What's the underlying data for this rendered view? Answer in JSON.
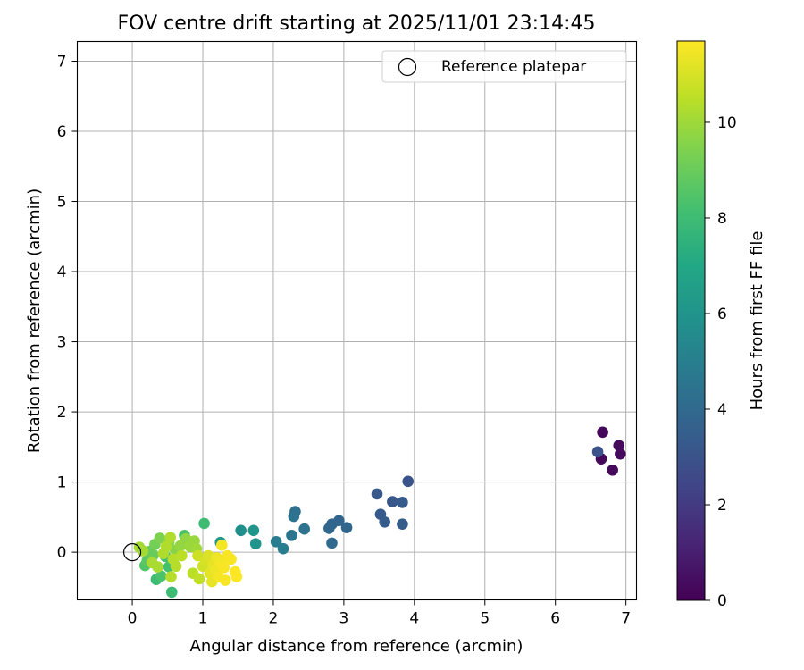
{
  "chart_data": {
    "type": "scatter",
    "title": "FOV centre drift starting at 2025/11/01 23:14:45",
    "xlabel": "Angular distance from reference (arcmin)",
    "ylabel": "Rotation from reference (arcmin)",
    "xlim": [
      -0.78,
      7.15
    ],
    "ylim": [
      -0.68,
      7.28
    ],
    "xticks": [
      0,
      1,
      2,
      3,
      4,
      5,
      6,
      7
    ],
    "yticks": [
      0,
      1,
      2,
      3,
      4,
      5,
      6,
      7
    ],
    "grid": true,
    "legend": {
      "position": "top-right",
      "entries": [
        "Reference platepar"
      ]
    },
    "reference_point": {
      "x": 0,
      "y": 0,
      "label": "Reference platepar"
    },
    "colorbar": {
      "label": "Hours from first FF file",
      "range": [
        0,
        11.7
      ],
      "ticks": [
        0,
        2,
        4,
        6,
        8,
        10
      ],
      "colormap": "viridis"
    },
    "series": [
      {
        "name": "FOV centre drift",
        "points": [
          {
            "x": 6.67,
            "y": 1.71,
            "h": 0.2
          },
          {
            "x": 6.9,
            "y": 1.52,
            "h": 0.3
          },
          {
            "x": 6.92,
            "y": 1.4,
            "h": 0.3
          },
          {
            "x": 6.65,
            "y": 1.33,
            "h": 0.2
          },
          {
            "x": 6.81,
            "y": 1.17,
            "h": 0.3
          },
          {
            "x": 6.6,
            "y": 1.43,
            "h": 3.0
          },
          {
            "x": 3.91,
            "y": 1.01,
            "h": 3.0
          },
          {
            "x": 3.47,
            "y": 0.83,
            "h": 3.2
          },
          {
            "x": 3.69,
            "y": 0.72,
            "h": 3.2
          },
          {
            "x": 3.83,
            "y": 0.71,
            "h": 3.3
          },
          {
            "x": 3.52,
            "y": 0.54,
            "h": 3.3
          },
          {
            "x": 3.58,
            "y": 0.43,
            "h": 3.4
          },
          {
            "x": 3.83,
            "y": 0.4,
            "h": 3.4
          },
          {
            "x": 2.93,
            "y": 0.45,
            "h": 3.8
          },
          {
            "x": 2.83,
            "y": 0.4,
            "h": 3.8
          },
          {
            "x": 2.79,
            "y": 0.34,
            "h": 3.9
          },
          {
            "x": 3.04,
            "y": 0.35,
            "h": 3.9
          },
          {
            "x": 2.83,
            "y": 0.13,
            "h": 4.0
          },
          {
            "x": 2.31,
            "y": 0.58,
            "h": 4.3
          },
          {
            "x": 2.29,
            "y": 0.51,
            "h": 4.4
          },
          {
            "x": 2.44,
            "y": 0.33,
            "h": 4.4
          },
          {
            "x": 2.26,
            "y": 0.24,
            "h": 4.6
          },
          {
            "x": 2.04,
            "y": 0.15,
            "h": 4.8
          },
          {
            "x": 2.14,
            "y": 0.05,
            "h": 4.9
          },
          {
            "x": 1.54,
            "y": 0.31,
            "h": 5.8
          },
          {
            "x": 1.72,
            "y": 0.31,
            "h": 6.0
          },
          {
            "x": 1.75,
            "y": 0.12,
            "h": 6.0
          },
          {
            "x": 1.25,
            "y": 0.14,
            "h": 6.2
          },
          {
            "x": 1.02,
            "y": 0.41,
            "h": 8.0
          },
          {
            "x": 0.74,
            "y": 0.24,
            "h": 8.3
          },
          {
            "x": 0.34,
            "y": -0.39,
            "h": 8.0
          },
          {
            "x": 0.41,
            "y": -0.34,
            "h": 8.3
          },
          {
            "x": 0.56,
            "y": -0.57,
            "h": 8.0
          },
          {
            "x": 0.52,
            "y": -0.21,
            "h": 8.2
          },
          {
            "x": 0.47,
            "y": -0.06,
            "h": 8.2
          },
          {
            "x": 0.18,
            "y": -0.19,
            "h": 8.5
          },
          {
            "x": 0.21,
            "y": -0.12,
            "h": 8.7
          },
          {
            "x": 0.24,
            "y": 0.01,
            "h": 8.9
          },
          {
            "x": 0.3,
            "y": -0.04,
            "h": 9.0
          },
          {
            "x": 0.32,
            "y": 0.11,
            "h": 9.2
          },
          {
            "x": 0.39,
            "y": 0.2,
            "h": 9.4
          },
          {
            "x": 0.52,
            "y": 0.15,
            "h": 9.6
          },
          {
            "x": 0.61,
            "y": 0.03,
            "h": 9.6
          },
          {
            "x": 0.68,
            "y": 0.09,
            "h": 9.8
          },
          {
            "x": 0.76,
            "y": 0.19,
            "h": 9.8
          },
          {
            "x": 0.82,
            "y": 0.08,
            "h": 9.9
          },
          {
            "x": 0.88,
            "y": 0.16,
            "h": 9.9
          },
          {
            "x": 0.91,
            "y": 0.05,
            "h": 10.0
          },
          {
            "x": 0.1,
            "y": 0.07,
            "h": 10.1
          },
          {
            "x": 0.15,
            "y": 0.02,
            "h": 10.1
          },
          {
            "x": 0.28,
            "y": -0.15,
            "h": 10.2
          },
          {
            "x": 0.36,
            "y": -0.21,
            "h": 10.2
          },
          {
            "x": 0.44,
            "y": -0.02,
            "h": 10.3
          },
          {
            "x": 0.48,
            "y": 0.08,
            "h": 10.3
          },
          {
            "x": 0.54,
            "y": 0.21,
            "h": 10.3
          },
          {
            "x": 0.58,
            "y": -0.1,
            "h": 10.4
          },
          {
            "x": 0.62,
            "y": -0.2,
            "h": 10.4
          },
          {
            "x": 0.55,
            "y": -0.35,
            "h": 10.4
          },
          {
            "x": 0.7,
            "y": -0.05,
            "h": 10.5
          },
          {
            "x": 0.86,
            "y": -0.3,
            "h": 10.5
          },
          {
            "x": 0.95,
            "y": -0.38,
            "h": 10.6
          },
          {
            "x": 0.93,
            "y": -0.05,
            "h": 10.8
          },
          {
            "x": 1.0,
            "y": -0.2,
            "h": 10.9
          },
          {
            "x": 1.04,
            "y": -0.12,
            "h": 11.0
          },
          {
            "x": 1.08,
            "y": -0.05,
            "h": 11.1
          },
          {
            "x": 1.1,
            "y": -0.3,
            "h": 11.2
          },
          {
            "x": 1.13,
            "y": -0.42,
            "h": 11.3
          },
          {
            "x": 1.15,
            "y": -0.18,
            "h": 11.3
          },
          {
            "x": 1.18,
            "y": -0.25,
            "h": 11.4
          },
          {
            "x": 1.2,
            "y": -0.08,
            "h": 11.4
          },
          {
            "x": 1.22,
            "y": -0.35,
            "h": 11.5
          },
          {
            "x": 1.25,
            "y": -0.15,
            "h": 11.5
          },
          {
            "x": 1.27,
            "y": 0.1,
            "h": 11.5
          },
          {
            "x": 1.3,
            "y": -0.22,
            "h": 11.6
          },
          {
            "x": 1.32,
            "y": -0.4,
            "h": 11.6
          },
          {
            "x": 1.35,
            "y": -0.05,
            "h": 11.6
          },
          {
            "x": 1.4,
            "y": -0.1,
            "h": 11.6
          },
          {
            "x": 1.46,
            "y": -0.28,
            "h": 11.7
          },
          {
            "x": 1.48,
            "y": -0.35,
            "h": 11.7
          }
        ]
      }
    ]
  }
}
